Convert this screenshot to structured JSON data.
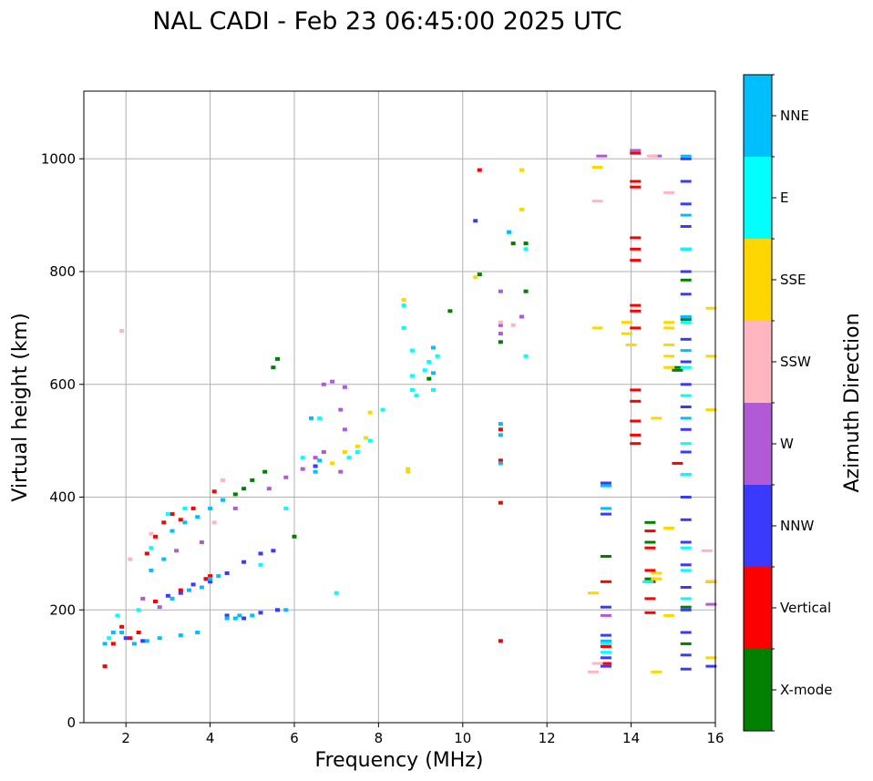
{
  "chart_data": {
    "type": "scatter",
    "title": "NAL CADI - Feb 23 06:45:00 2025 UTC",
    "xlabel": "Frequency (MHz)",
    "ylabel": "Virtual height (km)",
    "xlim": [
      1,
      16
    ],
    "ylim": [
      0,
      1120
    ],
    "xticks": [
      "2",
      "4",
      "6",
      "8",
      "10",
      "12",
      "14",
      "16"
    ],
    "yticks": [
      "0",
      "200",
      "400",
      "600",
      "800",
      "1000"
    ],
    "grid": true,
    "colorbar": {
      "label": "Azimuth Direction",
      "categories": [
        {
          "name": "X-mode",
          "color": "#008000"
        },
        {
          "name": "Vertical",
          "color": "#ff0000"
        },
        {
          "name": "NNW",
          "color": "#3a3aff"
        },
        {
          "name": "W",
          "color": "#b05ad6"
        },
        {
          "name": "SSW",
          "color": "#ffb6c1"
        },
        {
          "name": "SSE",
          "color": "#ffd700"
        },
        {
          "name": "E",
          "color": "#00ffff"
        },
        {
          "name": "NNE",
          "color": "#00bfff"
        }
      ]
    },
    "series": [
      {
        "name": "Vertical",
        "points": [
          [
            1.5,
            100
          ],
          [
            1.7,
            140
          ],
          [
            1.9,
            170
          ],
          [
            2.1,
            150
          ],
          [
            2.3,
            160
          ],
          [
            2.5,
            300
          ],
          [
            2.7,
            330
          ],
          [
            2.9,
            355
          ],
          [
            3.1,
            370
          ],
          [
            3.3,
            360
          ],
          [
            3.6,
            380
          ],
          [
            3.9,
            255
          ],
          [
            4.0,
            260
          ],
          [
            4.1,
            410
          ],
          [
            2.7,
            215
          ],
          [
            3.3,
            235
          ],
          [
            10.9,
            520
          ],
          [
            10.9,
            465
          ],
          [
            10.9,
            390
          ],
          [
            10.9,
            145
          ],
          [
            10.4,
            980
          ],
          [
            13.4,
            250
          ],
          [
            13.4,
            105
          ],
          [
            13.4,
            135
          ],
          [
            14.1,
            1010
          ],
          [
            14.1,
            960
          ],
          [
            14.1,
            950
          ],
          [
            14.1,
            820
          ],
          [
            14.1,
            840
          ],
          [
            14.1,
            860
          ],
          [
            14.1,
            740
          ],
          [
            14.1,
            730
          ],
          [
            14.1,
            700
          ],
          [
            14.1,
            590
          ],
          [
            14.1,
            570
          ],
          [
            14.1,
            510
          ],
          [
            14.1,
            495
          ],
          [
            14.1,
            535
          ],
          [
            14.45,
            340
          ],
          [
            14.45,
            270
          ],
          [
            14.45,
            250
          ],
          [
            14.45,
            220
          ],
          [
            14.45,
            195
          ],
          [
            14.45,
            310
          ],
          [
            15.1,
            460
          ],
          [
            15.9,
            250
          ]
        ]
      },
      {
        "name": "X-mode",
        "points": [
          [
            4.6,
            405
          ],
          [
            4.8,
            415
          ],
          [
            5.0,
            430
          ],
          [
            5.3,
            445
          ],
          [
            5.5,
            630
          ],
          [
            5.6,
            645
          ],
          [
            6.0,
            330
          ],
          [
            9.2,
            610
          ],
          [
            9.7,
            730
          ],
          [
            10.4,
            795
          ],
          [
            10.9,
            675
          ],
          [
            11.2,
            850
          ],
          [
            11.5,
            850
          ],
          [
            11.5,
            765
          ],
          [
            13.4,
            295
          ],
          [
            14.45,
            355
          ],
          [
            14.45,
            320
          ],
          [
            14.45,
            255
          ],
          [
            15.1,
            630
          ],
          [
            15.1,
            625
          ],
          [
            15.3,
            785
          ],
          [
            15.3,
            715
          ],
          [
            15.3,
            205
          ],
          [
            15.3,
            140
          ]
        ]
      },
      {
        "name": "NNW",
        "points": [
          [
            2.0,
            150
          ],
          [
            2.4,
            145
          ],
          [
            3.0,
            225
          ],
          [
            3.3,
            230
          ],
          [
            3.6,
            245
          ],
          [
            4.0,
            250
          ],
          [
            4.4,
            265
          ],
          [
            4.8,
            285
          ],
          [
            5.2,
            300
          ],
          [
            5.5,
            305
          ],
          [
            4.4,
            190
          ],
          [
            4.8,
            185
          ],
          [
            5.2,
            195
          ],
          [
            5.6,
            200
          ],
          [
            6.5,
            455
          ],
          [
            10.3,
            890
          ],
          [
            13.4,
            425
          ],
          [
            13.4,
            370
          ],
          [
            13.4,
            205
          ],
          [
            13.4,
            155
          ],
          [
            13.4,
            115
          ],
          [
            13.4,
            100
          ],
          [
            15.3,
            1000
          ],
          [
            15.3,
            960
          ],
          [
            15.3,
            920
          ],
          [
            15.3,
            880
          ],
          [
            15.3,
            840
          ],
          [
            15.3,
            800
          ],
          [
            15.3,
            760
          ],
          [
            15.3,
            720
          ],
          [
            15.3,
            680
          ],
          [
            15.3,
            640
          ],
          [
            15.3,
            600
          ],
          [
            15.3,
            560
          ],
          [
            15.3,
            520
          ],
          [
            15.3,
            480
          ],
          [
            15.3,
            440
          ],
          [
            15.3,
            400
          ],
          [
            15.3,
            360
          ],
          [
            15.3,
            320
          ],
          [
            15.3,
            280
          ],
          [
            15.3,
            240
          ],
          [
            15.3,
            200
          ],
          [
            15.3,
            160
          ],
          [
            15.3,
            120
          ],
          [
            15.3,
            95
          ],
          [
            15.9,
            100
          ]
        ]
      },
      {
        "name": "W",
        "points": [
          [
            2.4,
            220
          ],
          [
            2.8,
            205
          ],
          [
            3.2,
            305
          ],
          [
            3.8,
            320
          ],
          [
            4.6,
            380
          ],
          [
            5.4,
            415
          ],
          [
            5.8,
            435
          ],
          [
            6.2,
            450
          ],
          [
            6.5,
            470
          ],
          [
            6.7,
            480
          ],
          [
            6.7,
            600
          ],
          [
            6.9,
            605
          ],
          [
            7.1,
            445
          ],
          [
            7.1,
            555
          ],
          [
            7.2,
            520
          ],
          [
            7.2,
            595
          ],
          [
            10.9,
            765
          ],
          [
            10.9,
            705
          ],
          [
            10.9,
            690
          ],
          [
            11.4,
            720
          ],
          [
            13.3,
            1005
          ],
          [
            13.4,
            190
          ],
          [
            14.1,
            1015
          ],
          [
            14.6,
            1005
          ],
          [
            15.9,
            210
          ]
        ]
      },
      {
        "name": "SSW",
        "points": [
          [
            1.9,
            695
          ],
          [
            2.1,
            290
          ],
          [
            2.6,
            335
          ],
          [
            4.1,
            355
          ],
          [
            4.3,
            430
          ],
          [
            10.9,
            710
          ],
          [
            11.2,
            705
          ],
          [
            13.2,
            925
          ],
          [
            13.2,
            105
          ],
          [
            13.1,
            90
          ],
          [
            14.5,
            1005
          ],
          [
            14.9,
            940
          ],
          [
            15.8,
            305
          ]
        ]
      },
      {
        "name": "SSE",
        "points": [
          [
            6.9,
            460
          ],
          [
            7.2,
            480
          ],
          [
            7.5,
            490
          ],
          [
            7.7,
            505
          ],
          [
            7.8,
            550
          ],
          [
            8.6,
            750
          ],
          [
            8.7,
            450
          ],
          [
            8.7,
            445
          ],
          [
            10.3,
            790
          ],
          [
            11.4,
            980
          ],
          [
            11.4,
            910
          ],
          [
            13.2,
            985
          ],
          [
            13.2,
            700
          ],
          [
            13.1,
            230
          ],
          [
            13.9,
            710
          ],
          [
            13.9,
            690
          ],
          [
            14.0,
            670
          ],
          [
            14.6,
            540
          ],
          [
            14.6,
            265
          ],
          [
            14.6,
            255
          ],
          [
            14.6,
            90
          ],
          [
            14.9,
            710
          ],
          [
            14.9,
            700
          ],
          [
            14.9,
            670
          ],
          [
            14.9,
            650
          ],
          [
            14.9,
            630
          ],
          [
            14.9,
            345
          ],
          [
            14.9,
            190
          ],
          [
            15.9,
            735
          ],
          [
            15.9,
            650
          ],
          [
            15.9,
            555
          ],
          [
            15.9,
            250
          ],
          [
            15.9,
            115
          ]
        ]
      },
      {
        "name": "E",
        "points": [
          [
            1.6,
            150
          ],
          [
            1.8,
            190
          ],
          [
            2.3,
            200
          ],
          [
            2.6,
            310
          ],
          [
            3.0,
            370
          ],
          [
            3.4,
            380
          ],
          [
            5.2,
            280
          ],
          [
            5.8,
            380
          ],
          [
            6.2,
            470
          ],
          [
            6.6,
            540
          ],
          [
            7.0,
            230
          ],
          [
            7.3,
            470
          ],
          [
            7.5,
            480
          ],
          [
            7.8,
            500
          ],
          [
            8.1,
            555
          ],
          [
            8.6,
            740
          ],
          [
            8.6,
            700
          ],
          [
            8.8,
            660
          ],
          [
            8.8,
            615
          ],
          [
            8.8,
            590
          ],
          [
            8.9,
            580
          ],
          [
            9.1,
            625
          ],
          [
            9.2,
            640
          ],
          [
            9.3,
            590
          ],
          [
            9.4,
            650
          ],
          [
            11.1,
            870
          ],
          [
            11.5,
            840
          ],
          [
            11.5,
            650
          ],
          [
            13.4,
            140
          ],
          [
            13.4,
            125
          ],
          [
            14.4,
            250
          ],
          [
            15.3,
            840
          ],
          [
            15.3,
            710
          ],
          [
            15.3,
            630
          ],
          [
            15.3,
            580
          ],
          [
            15.3,
            495
          ],
          [
            15.3,
            440
          ],
          [
            15.3,
            310
          ],
          [
            15.3,
            270
          ],
          [
            15.3,
            220
          ]
        ]
      },
      {
        "name": "NNE",
        "points": [
          [
            1.5,
            140
          ],
          [
            1.7,
            160
          ],
          [
            1.9,
            160
          ],
          [
            2.2,
            140
          ],
          [
            2.5,
            145
          ],
          [
            2.8,
            150
          ],
          [
            3.3,
            155
          ],
          [
            3.7,
            160
          ],
          [
            2.6,
            270
          ],
          [
            2.9,
            290
          ],
          [
            3.1,
            340
          ],
          [
            3.4,
            355
          ],
          [
            3.7,
            365
          ],
          [
            4.0,
            380
          ],
          [
            4.3,
            395
          ],
          [
            3.1,
            220
          ],
          [
            3.5,
            235
          ],
          [
            3.8,
            240
          ],
          [
            4.0,
            255
          ],
          [
            4.2,
            260
          ],
          [
            4.4,
            185
          ],
          [
            4.6,
            185
          ],
          [
            4.7,
            190
          ],
          [
            5.0,
            190
          ],
          [
            5.8,
            200
          ],
          [
            6.4,
            540
          ],
          [
            6.5,
            445
          ],
          [
            6.6,
            465
          ],
          [
            9.3,
            665
          ],
          [
            9.3,
            620
          ],
          [
            10.9,
            530
          ],
          [
            10.9,
            510
          ],
          [
            10.9,
            460
          ],
          [
            11.1,
            870
          ],
          [
            13.4,
            420
          ],
          [
            13.4,
            380
          ],
          [
            13.4,
            145
          ],
          [
            15.3,
            1005
          ],
          [
            15.3,
            900
          ],
          [
            15.3,
            720
          ],
          [
            15.3,
            660
          ],
          [
            15.3,
            540
          ]
        ]
      }
    ]
  }
}
